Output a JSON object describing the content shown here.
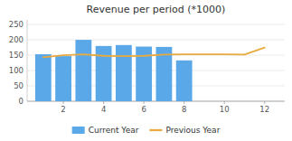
{
  "chart_data": {
    "type": "bar",
    "title": "Revenue per period (*1000)",
    "series": [
      {
        "name": "Current Year",
        "type": "bar",
        "color": "#5ba8e8",
        "x": [
          1,
          2,
          3,
          4,
          5,
          6,
          7,
          8
        ],
        "values": [
          153,
          147,
          200,
          180,
          183,
          178,
          177,
          133
        ]
      },
      {
        "name": "Previous Year",
        "type": "line",
        "color": "#e8aa3e",
        "x": [
          1,
          2,
          3,
          4,
          5,
          6,
          7,
          8,
          9,
          10,
          11,
          12
        ],
        "values": [
          143,
          150,
          153,
          148,
          147,
          148,
          152,
          153,
          153,
          153,
          152,
          175
        ]
      }
    ],
    "xlim": [
      0.2,
      13
    ],
    "ylim": [
      0,
      265
    ],
    "xticks": [
      2,
      4,
      6,
      8,
      10,
      12
    ],
    "yticks": [
      0,
      50,
      100,
      150,
      200,
      250
    ],
    "grid": true,
    "legend": "bottom"
  }
}
